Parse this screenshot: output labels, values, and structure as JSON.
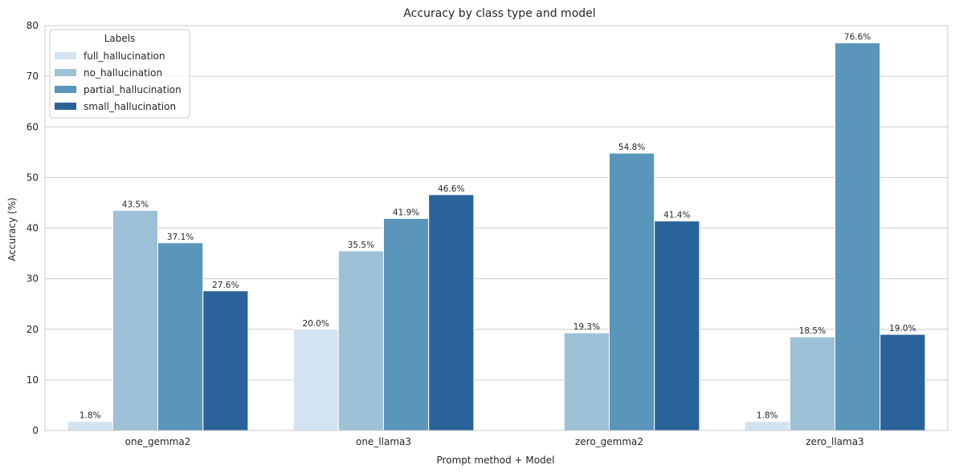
{
  "chart_data": {
    "type": "bar",
    "title": "Accuracy by class type and model",
    "xlabel": "Prompt method + Model",
    "ylabel": "Accuracy (%)",
    "categories": [
      "one_gemma2",
      "one_llama3",
      "zero_gemma2",
      "zero_llama3"
    ],
    "ylim": [
      0,
      80
    ],
    "yticks": [
      0,
      10,
      20,
      30,
      40,
      50,
      60,
      70,
      80
    ],
    "grid": true,
    "legend": {
      "title": "Labels",
      "position": "top-left"
    },
    "series": [
      {
        "name": "full_hallucination",
        "color": "#d3e3f1",
        "values": [
          1.8,
          20.0,
          null,
          1.8
        ],
        "labels": [
          "1.8%",
          "20.0%",
          "",
          "1.8%"
        ]
      },
      {
        "name": "no_hallucination",
        "color": "#9dc1d6",
        "values": [
          43.5,
          35.5,
          19.3,
          18.5
        ],
        "labels": [
          "43.5%",
          "35.5%",
          "19.3%",
          "18.5%"
        ]
      },
      {
        "name": "partial_hallucination",
        "color": "#5a95ba",
        "values": [
          37.1,
          41.9,
          54.8,
          76.6
        ],
        "labels": [
          "37.1%",
          "41.9%",
          "54.8%",
          "76.6%"
        ]
      },
      {
        "name": "small_hallucination",
        "color": "#2a6399",
        "values": [
          27.6,
          46.6,
          41.4,
          19.0
        ],
        "labels": [
          "27.6%",
          "46.6%",
          "41.4%",
          "19.0%"
        ]
      }
    ]
  }
}
